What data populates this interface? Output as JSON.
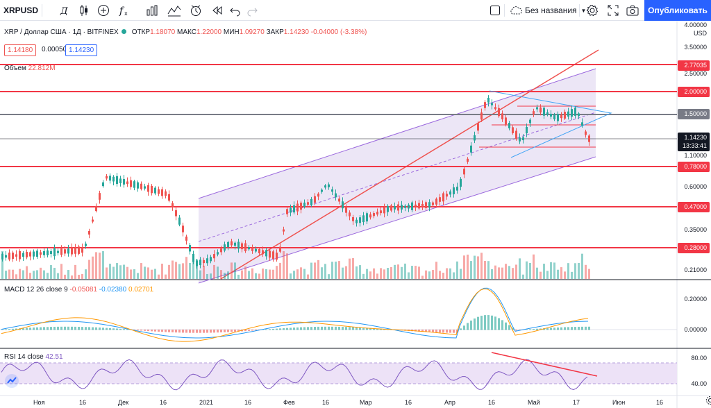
{
  "toolbar": {
    "symbol": "XRPUSD",
    "layout_name": "Без названия",
    "publish_label": "Опубликовать",
    "icons": [
      "bar-style-d-icon",
      "candles-icon",
      "add-compare-icon",
      "indicators-fx-icon",
      "templates-icon",
      "alert-icon",
      "replay-icon",
      "undo-icon",
      "redo-icon",
      "checkbox-icon",
      "cloud-icon",
      "settings-gear-icon",
      "fullscreen-icon",
      "screenshot-camera-icon"
    ]
  },
  "legend": {
    "title": "XRP / Доллар США · 1Д · BITFINEX",
    "open_label": "ОТКР",
    "open": "1.18070",
    "high_label": "МАКС",
    "high": "1.22000",
    "low_label": "МИН",
    "low": "1.09270",
    "close_label": "ЗАКР",
    "close": "1.14230",
    "change": "-0.04000 (-3.38%)",
    "bid": "1.14180",
    "spread": "0.00050",
    "ask": "1.14230",
    "volume_label": "Объем",
    "volume": "22.812M"
  },
  "macd": {
    "label": "MACD 12 26 close 9",
    "v1": "-0.05081",
    "v2": "-0.02380",
    "v3": "0.02701"
  },
  "rsi": {
    "label": "RSI 14 close",
    "value": "42.51"
  },
  "price_axis": {
    "ticks": [
      "4.00000",
      "3.50000",
      "2.50000",
      "0.60000",
      "0.35000",
      "0.21000"
    ],
    "currency": "USD",
    "levels": [
      {
        "value": "2.77035",
        "style": "red"
      },
      {
        "value": "2.00000",
        "style": "red"
      },
      {
        "value": "1.50000",
        "style": "gray"
      },
      {
        "value": "1.14230",
        "style": "dark"
      },
      {
        "value": "13:33:41",
        "style": "dark"
      },
      {
        "value": "1.10000",
        "style": "plain"
      },
      {
        "value": "0.78000",
        "style": "red"
      },
      {
        "value": "0.47000",
        "style": "red"
      },
      {
        "value": "0.28000",
        "style": "red"
      }
    ]
  },
  "macd_axis": [
    "0.20000",
    "0.00000"
  ],
  "rsi_axis": [
    "80.00",
    "40.00"
  ],
  "time_axis": [
    "Ноя",
    "16",
    "Дек",
    "16",
    "2021",
    "16",
    "Фев",
    "16",
    "Мар",
    "16",
    "Апр",
    "16",
    "Май",
    "17",
    "Июн",
    "16"
  ],
  "colors": {
    "up": "#26a69a",
    "down": "#ef5350",
    "level": "#f23645",
    "channel": "#9c6ade",
    "triangle": "#42a5f5",
    "macd_line": "#2196f3",
    "signal_line": "#ff9800",
    "rsi_line": "#7e57c2",
    "rsi_band": "#ede2f7",
    "accent": "#2962ff"
  }
}
